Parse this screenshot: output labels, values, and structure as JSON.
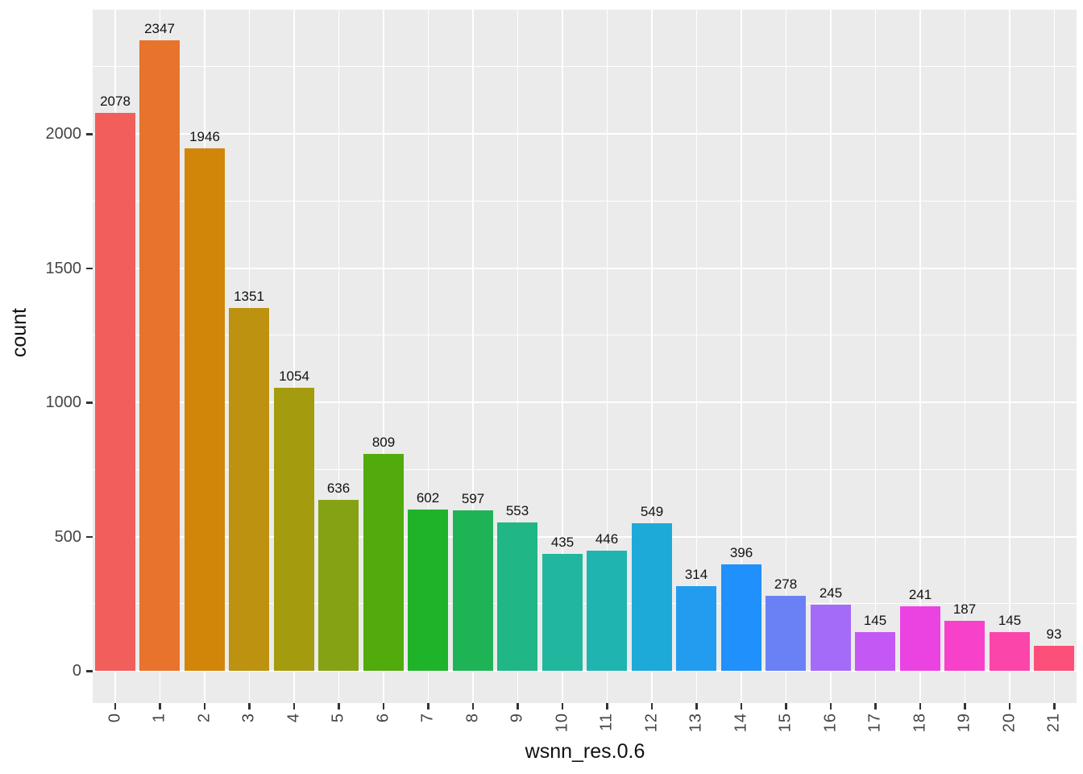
{
  "chart_data": {
    "type": "bar",
    "title": "",
    "xlabel": "wsnn_res.0.6",
    "ylabel": "count",
    "categories": [
      "0",
      "1",
      "2",
      "3",
      "4",
      "5",
      "6",
      "7",
      "8",
      "9",
      "10",
      "11",
      "12",
      "13",
      "14",
      "15",
      "16",
      "17",
      "18",
      "19",
      "20",
      "21"
    ],
    "values": [
      2078,
      2347,
      1946,
      1351,
      1054,
      636,
      809,
      602,
      597,
      553,
      435,
      446,
      549,
      314,
      396,
      278,
      245,
      145,
      241,
      187,
      145,
      93
    ],
    "bar_labels": [
      "2078",
      "2347",
      "1946",
      "1351",
      "1054",
      "636",
      "809",
      "602",
      "597",
      "553",
      "435",
      "446",
      "549",
      "314",
      "396",
      "278",
      "245",
      "145",
      "241",
      "187",
      "145",
      "93"
    ],
    "bar_colors": [
      "#F25E5B",
      "#E8732C",
      "#D1860A",
      "#BC9210",
      "#A49B0E",
      "#85A214",
      "#52AB0D",
      "#1FB32A",
      "#1EB456",
      "#20B685",
      "#21B69E",
      "#20B4B1",
      "#1EAAD8",
      "#229CEF",
      "#1F90FC",
      "#6A81F6",
      "#A36BF8",
      "#C358F5",
      "#EA43E1",
      "#F841CB",
      "#FC45AB",
      "#FC4F79"
    ],
    "y_ticks": [
      {
        "value": 0,
        "label": "0"
      },
      {
        "value": 500,
        "label": "500"
      },
      {
        "value": 1000,
        "label": "1000"
      },
      {
        "value": 1500,
        "label": "1500"
      },
      {
        "value": 2000,
        "label": "2000"
      }
    ],
    "y_minor_ticks": [
      250,
      750,
      1250,
      1750,
      2250
    ],
    "ylim": [
      0,
      2460
    ],
    "grid": true,
    "legend": "none",
    "panel_bg": "#EBEBEB",
    "grid_color": "#FFFFFF",
    "tick_color": "#333333",
    "axis_text_color": "#454545",
    "label_text_color": "#111111"
  }
}
